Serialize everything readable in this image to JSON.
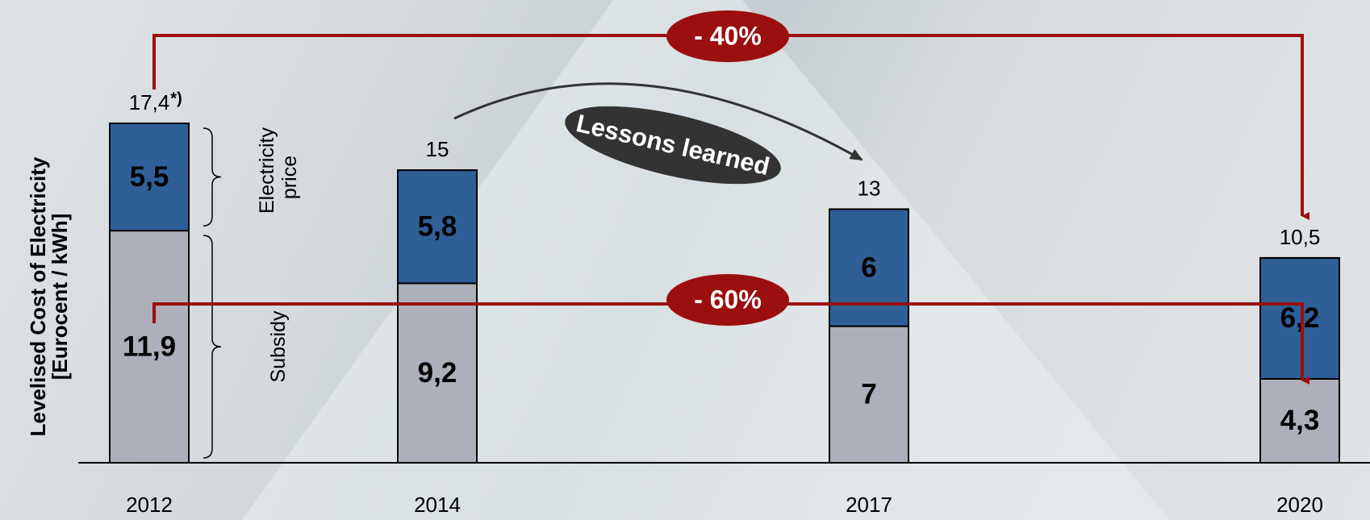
{
  "chart_data": {
    "type": "stacked_bar",
    "y_label_lines": [
      "Levelised Cost of Electricity",
      "[Eurocent / kWh]"
    ],
    "categories": [
      "2012",
      "2014",
      "2017",
      "2020"
    ],
    "series": [
      {
        "name": "Subsidy",
        "color": "#adb0ba",
        "values": [
          11.9,
          9.2,
          7,
          4.3
        ],
        "value_labels": [
          "11,9",
          "9,2",
          "7",
          "4,3"
        ]
      },
      {
        "name": "Electricity price",
        "color": "#2f5f97",
        "values": [
          5.5,
          5.8,
          6,
          6.2
        ],
        "value_labels": [
          "5,5",
          "5,8",
          "6",
          "6,2"
        ]
      }
    ],
    "totals": {
      "values": [
        17.4,
        15,
        13,
        10.5
      ],
      "value_labels": [
        "17,4",
        "15",
        "13",
        "10,5"
      ]
    },
    "footnote_mark": "*)",
    "annotations": {
      "total_reduction": "- 40%",
      "subsidy_reduction": "- 60%",
      "lessons": "Lessons learned"
    }
  }
}
